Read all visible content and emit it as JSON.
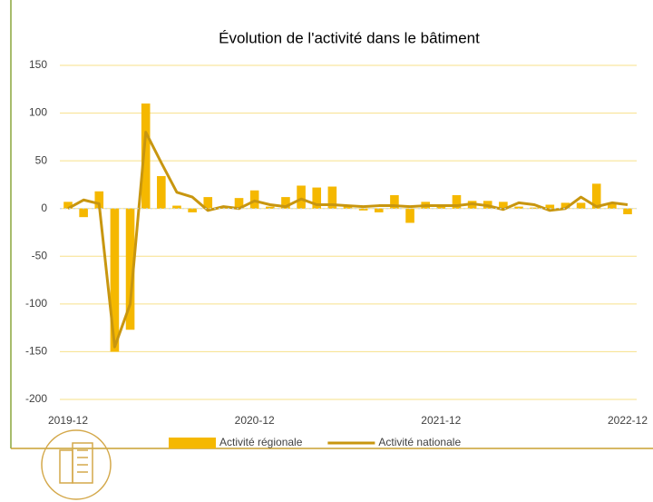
{
  "chart_data": {
    "type": "bar-line",
    "title": "Évolution de l'activité dans le bâtiment",
    "categories": [
      "2019-12",
      null,
      null,
      null,
      null,
      null,
      null,
      null,
      null,
      null,
      null,
      null,
      "2020-12",
      null,
      null,
      null,
      null,
      null,
      null,
      null,
      null,
      null,
      null,
      null,
      "2021-12",
      null,
      null,
      null,
      null,
      null,
      null,
      null,
      null,
      null,
      null,
      null,
      "2022-12"
    ],
    "series": [
      {
        "name": "Activité régionale",
        "type": "bar",
        "color": "#f5b800",
        "values": [
          7,
          -9,
          18,
          -150,
          -127,
          110,
          34,
          3,
          -4,
          12,
          1,
          11,
          19,
          2,
          12,
          24,
          22,
          23,
          4,
          -2,
          -4,
          14,
          -15,
          7,
          3,
          14,
          8,
          8,
          7,
          2,
          1,
          4,
          6,
          6,
          26,
          5,
          -6
        ]
      },
      {
        "name": "Activité nationale",
        "type": "line",
        "color": "#c8960f",
        "values": [
          0,
          9,
          5,
          -145,
          -100,
          80,
          48,
          17,
          12,
          -2,
          2,
          0,
          8,
          4,
          2,
          10,
          4,
          4,
          3,
          2,
          3,
          3,
          2,
          3,
          3,
          3,
          5,
          3,
          -1,
          6,
          4,
          -2,
          0,
          12,
          2,
          6,
          4
        ]
      }
    ],
    "ylim": [
      -200,
      150
    ],
    "yticks": [
      -200,
      -150,
      -100,
      -50,
      0,
      50,
      100,
      150
    ],
    "grid": true,
    "legend": "bottom"
  }
}
